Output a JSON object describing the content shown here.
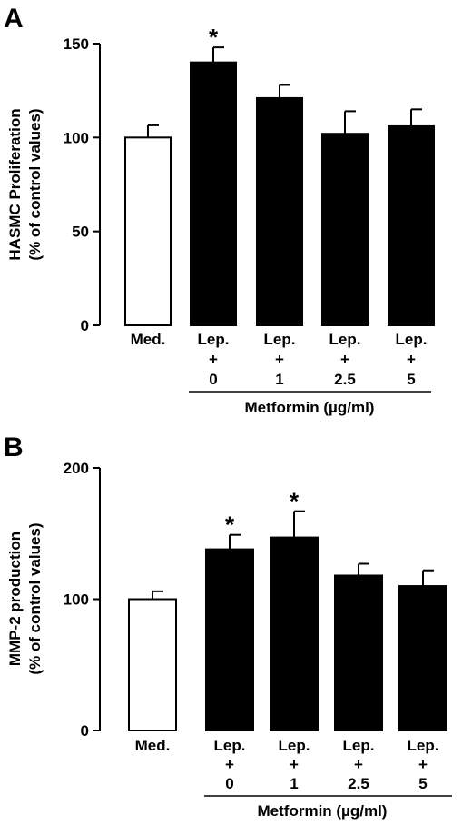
{
  "chart_data": [
    {
      "panel_label": "A",
      "type": "bar",
      "categories": [
        {
          "line1": "Med.",
          "line2": "",
          "line3": ""
        },
        {
          "line1": "Lep.",
          "line2": "+",
          "line3": "0"
        },
        {
          "line1": "Lep.",
          "line2": "+",
          "line3": "1"
        },
        {
          "line1": "Lep.",
          "line2": "+",
          "line3": "2.5"
        },
        {
          "line1": "Lep.",
          "line2": "+",
          "line3": "5"
        }
      ],
      "values": [
        100,
        140,
        121,
        102,
        106
      ],
      "errors": [
        6.5,
        8,
        7,
        12,
        9
      ],
      "fills": [
        "#ffffff",
        "#000000",
        "#000000",
        "#000000",
        "#000000"
      ],
      "significance": [
        "",
        "*",
        "",
        "",
        ""
      ],
      "ylabel_line1": "HASMC Proliferation",
      "ylabel_line2": "(% of control values)",
      "xlabel": "Metformin (µg/ml)",
      "ylim": [
        0,
        150
      ],
      "yticks": [
        0,
        50,
        100,
        150
      ]
    },
    {
      "panel_label": "B",
      "type": "bar",
      "categories": [
        {
          "line1": "Med.",
          "line2": "",
          "line3": ""
        },
        {
          "line1": "Lep.",
          "line2": "+",
          "line3": "0"
        },
        {
          "line1": "Lep.",
          "line2": "+",
          "line3": "1"
        },
        {
          "line1": "Lep.",
          "line2": "+",
          "line3": "2.5"
        },
        {
          "line1": "Lep.",
          "line2": "+",
          "line3": "5"
        }
      ],
      "values": [
        100,
        138,
        147,
        118,
        110
      ],
      "errors": [
        6,
        11,
        20,
        9,
        12
      ],
      "fills": [
        "#ffffff",
        "#000000",
        "#000000",
        "#000000",
        "#000000"
      ],
      "significance": [
        "",
        "*",
        "*",
        "",
        ""
      ],
      "ylabel_line1": "MMP-2 production",
      "ylabel_line2": "(% of control values)",
      "xlabel": "Metformin (µg/ml)",
      "ylim": [
        0,
        200
      ],
      "yticks": [
        0,
        100,
        200
      ]
    }
  ]
}
